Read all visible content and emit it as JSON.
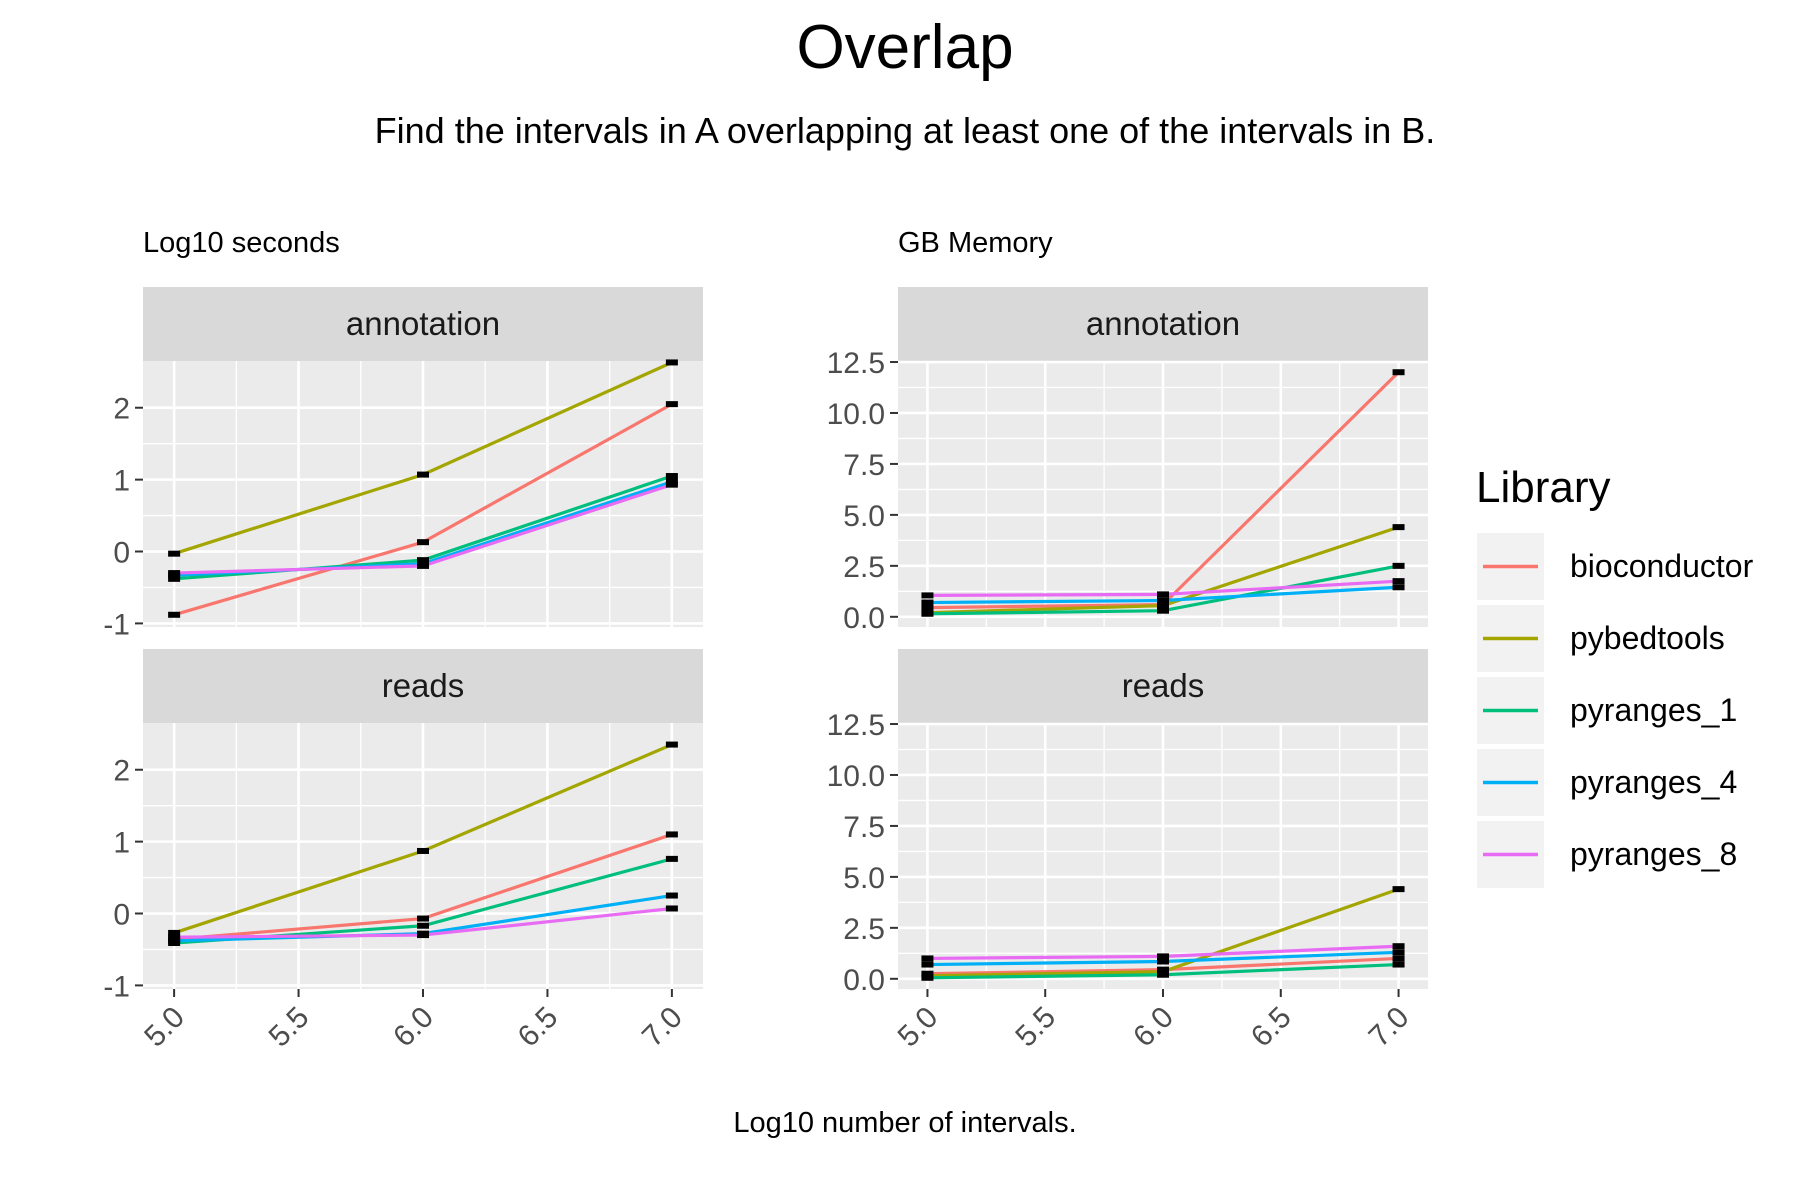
{
  "title": "Overlap",
  "subtitle": "Find the intervals in A overlapping at least one of the intervals in B.",
  "xlabel": "Log10 number of intervals.",
  "legend": {
    "title": "Library",
    "position": "right",
    "entries": [
      {
        "name": "bioconductor",
        "color": "#F8766D"
      },
      {
        "name": "pybedtools",
        "color": "#A3A500"
      },
      {
        "name": "pyranges_1",
        "color": "#00BF7D"
      },
      {
        "name": "pyranges_4",
        "color": "#00B0F6"
      },
      {
        "name": "pyranges_8",
        "color": "#E76BF3"
      }
    ]
  },
  "chart_data": [
    {
      "type": "line",
      "label": "Log10 seconds",
      "xlim": [
        4.875,
        7.125
      ],
      "ylim": [
        -1.05,
        2.65
      ],
      "x_ticks": [
        "5.0",
        "5.5",
        "6.0",
        "6.5",
        "7.0"
      ],
      "y_ticks": [
        "-1",
        "0",
        "1",
        "2"
      ],
      "y_tick_values": [
        -1,
        0,
        1,
        2
      ],
      "x": [
        5,
        6,
        7
      ],
      "facets": [
        {
          "name": "annotation",
          "series": [
            {
              "name": "bioconductor",
              "values": [
                -0.88,
                0.13,
                2.05
              ]
            },
            {
              "name": "pybedtools",
              "values": [
                -0.03,
                1.07,
                2.63
              ]
            },
            {
              "name": "pyranges_1",
              "values": [
                -0.38,
                -0.12,
                1.05
              ]
            },
            {
              "name": "pyranges_4",
              "values": [
                -0.33,
                -0.17,
                0.97
              ]
            },
            {
              "name": "pyranges_8",
              "values": [
                -0.3,
                -0.2,
                0.93
              ]
            }
          ]
        },
        {
          "name": "reads",
          "series": [
            {
              "name": "bioconductor",
              "values": [
                -0.36,
                -0.07,
                1.1
              ]
            },
            {
              "name": "pybedtools",
              "values": [
                -0.27,
                0.87,
                2.35
              ]
            },
            {
              "name": "pyranges_1",
              "values": [
                -0.41,
                -0.17,
                0.76
              ]
            },
            {
              "name": "pyranges_4",
              "values": [
                -0.38,
                -0.28,
                0.25
              ]
            },
            {
              "name": "pyranges_8",
              "values": [
                -0.33,
                -0.3,
                0.07
              ]
            }
          ]
        }
      ]
    },
    {
      "type": "line",
      "label": "GB Memory",
      "xlim": [
        4.875,
        7.125
      ],
      "ylim": [
        -0.5,
        12.55
      ],
      "x_ticks": [
        "5.0",
        "5.5",
        "6.0",
        "6.5",
        "7.0"
      ],
      "y_ticks": [
        "0.0",
        "2.5",
        "5.0",
        "7.5",
        "10.0",
        "12.5"
      ],
      "y_tick_values": [
        0,
        2.5,
        5,
        7.5,
        10,
        12.5
      ],
      "x": [
        5,
        6,
        7
      ],
      "facets": [
        {
          "name": "annotation",
          "series": [
            {
              "name": "bioconductor",
              "values": [
                0.45,
                0.6,
                12.0
              ]
            },
            {
              "name": "pybedtools",
              "values": [
                0.2,
                0.55,
                4.4
              ]
            },
            {
              "name": "pyranges_1",
              "values": [
                0.15,
                0.3,
                2.5
              ]
            },
            {
              "name": "pyranges_4",
              "values": [
                0.7,
                0.8,
                1.45
              ]
            },
            {
              "name": "pyranges_8",
              "values": [
                1.05,
                1.1,
                1.75
              ]
            }
          ]
        },
        {
          "name": "reads",
          "series": [
            {
              "name": "bioconductor",
              "values": [
                0.25,
                0.45,
                1.0
              ]
            },
            {
              "name": "pybedtools",
              "values": [
                0.15,
                0.35,
                4.4
              ]
            },
            {
              "name": "pyranges_1",
              "values": [
                0.05,
                0.2,
                0.7
              ]
            },
            {
              "name": "pyranges_4",
              "values": [
                0.7,
                0.85,
                1.3
              ]
            },
            {
              "name": "pyranges_8",
              "values": [
                1.0,
                1.1,
                1.6
              ]
            }
          ]
        }
      ]
    }
  ]
}
